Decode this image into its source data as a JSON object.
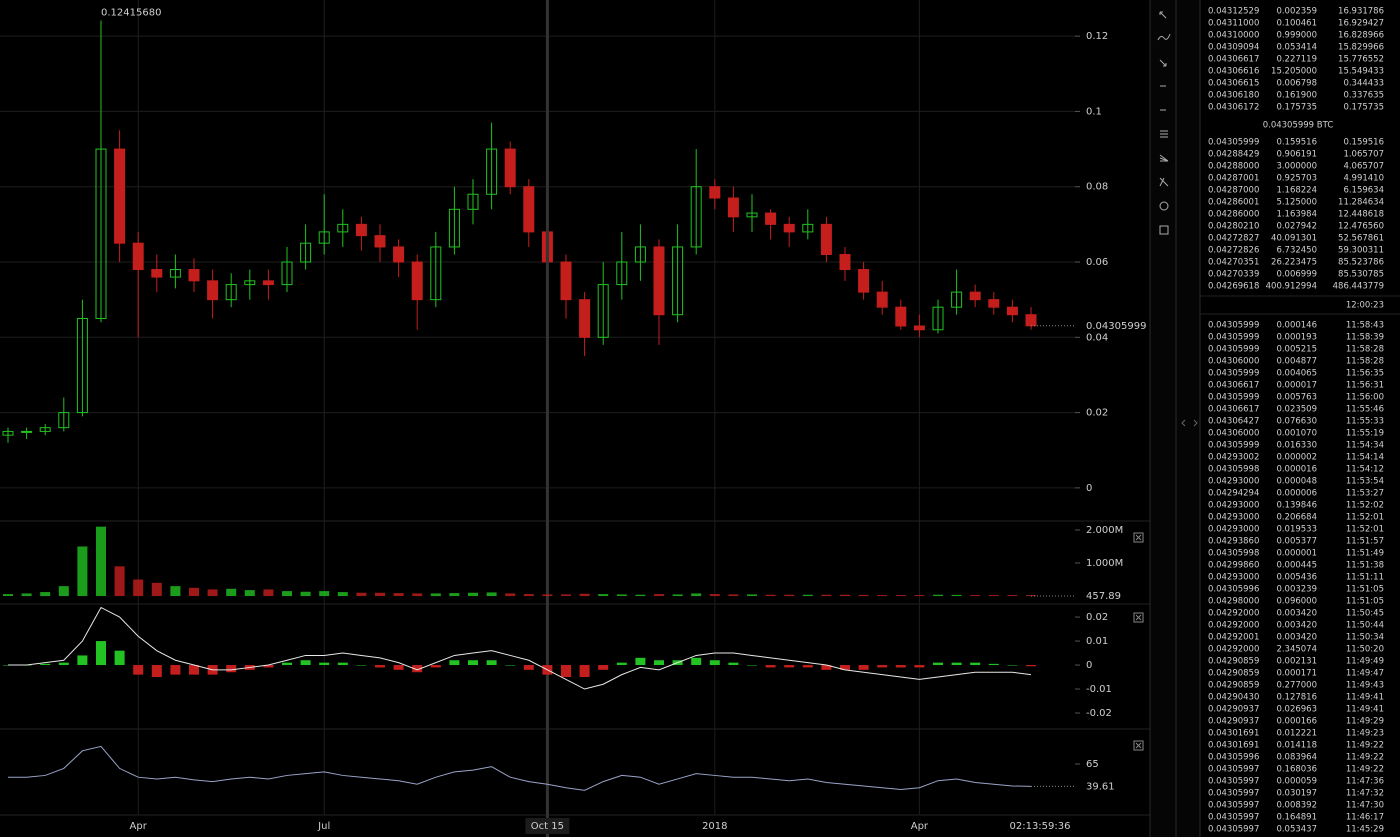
{
  "price_chart": {
    "type": "candlestick",
    "categories": [
      null,
      null,
      null,
      null,
      null,
      null,
      null,
      "Apr",
      null,
      null,
      null,
      null,
      null,
      null,
      null,
      null,
      null,
      "Jul",
      null,
      null,
      null,
      null,
      null,
      null,
      null,
      null,
      null,
      null,
      null,
      "Oct 15",
      null,
      null,
      null,
      null,
      null,
      null,
      null,
      null,
      "2018",
      null,
      null,
      null,
      null,
      null,
      null,
      null,
      null,
      null,
      null,
      "Apr",
      null,
      null,
      null,
      null,
      null,
      null
    ],
    "open": [
      0.014,
      0.015,
      0.015,
      0.016,
      0.02,
      0.045,
      0.09,
      0.065,
      0.058,
      0.056,
      0.058,
      0.055,
      0.05,
      0.054,
      0.055,
      0.054,
      0.06,
      0.065,
      0.068,
      0.07,
      0.067,
      0.064,
      0.06,
      0.05,
      0.064,
      0.074,
      0.078,
      0.09,
      0.08,
      0.068,
      0.06,
      0.05,
      0.04,
      0.054,
      0.06,
      0.064,
      0.046,
      0.064,
      0.08,
      0.077,
      0.072,
      0.073,
      0.07,
      0.068,
      0.07,
      0.062,
      0.058,
      0.052,
      0.048,
      0.043,
      0.042,
      0.048,
      0.052,
      0.05,
      0.048,
      0.046
    ],
    "high": [
      0.016,
      0.016,
      0.017,
      0.024,
      0.05,
      0.1241568,
      0.095,
      0.068,
      0.062,
      0.062,
      0.061,
      0.058,
      0.057,
      0.058,
      0.058,
      0.064,
      0.07,
      0.078,
      0.074,
      0.072,
      0.07,
      0.066,
      0.062,
      0.068,
      0.08,
      0.082,
      0.097,
      0.092,
      0.082,
      0.07,
      0.062,
      0.052,
      0.06,
      0.068,
      0.07,
      0.066,
      0.07,
      0.09,
      0.082,
      0.08,
      0.078,
      0.074,
      0.072,
      0.074,
      0.072,
      0.064,
      0.06,
      0.055,
      0.05,
      0.046,
      0.05,
      0.058,
      0.054,
      0.052,
      0.05,
      0.048
    ],
    "low": [
      0.012,
      0.013,
      0.014,
      0.015,
      0.019,
      0.044,
      0.06,
      0.04,
      0.052,
      0.053,
      0.052,
      0.045,
      0.048,
      0.05,
      0.05,
      0.052,
      0.058,
      0.062,
      0.064,
      0.063,
      0.06,
      0.056,
      0.042,
      0.048,
      0.062,
      0.07,
      0.074,
      0.078,
      0.064,
      0.056,
      0.045,
      0.035,
      0.038,
      0.05,
      0.055,
      0.038,
      0.044,
      0.062,
      0.074,
      0.068,
      0.068,
      0.066,
      0.064,
      0.066,
      0.06,
      0.055,
      0.05,
      0.046,
      0.042,
      0.04,
      0.041,
      0.046,
      0.048,
      0.046,
      0.044,
      0.042
    ],
    "close": [
      0.015,
      0.015,
      0.016,
      0.02,
      0.045,
      0.09,
      0.065,
      0.058,
      0.056,
      0.058,
      0.055,
      0.05,
      0.054,
      0.055,
      0.054,
      0.06,
      0.065,
      0.068,
      0.07,
      0.067,
      0.064,
      0.06,
      0.05,
      0.064,
      0.074,
      0.078,
      0.09,
      0.08,
      0.068,
      0.06,
      0.05,
      0.04,
      0.054,
      0.06,
      0.064,
      0.046,
      0.064,
      0.08,
      0.077,
      0.072,
      0.073,
      0.07,
      0.068,
      0.07,
      0.062,
      0.058,
      0.052,
      0.048,
      0.043,
      0.042,
      0.048,
      0.052,
      0.05,
      0.048,
      0.046,
      0.04305999
    ],
    "high_label": "0.12415680",
    "ylim": [
      -0.008,
      0.1296
    ],
    "yticks": [
      0,
      0.02,
      0.04,
      0.06,
      0.08,
      0.1,
      0.12
    ],
    "up_color": "#22c322",
    "down_color": "#c51f1d",
    "grid": true,
    "countdown": "02:13:59:36"
  },
  "volume_chart": {
    "type": "bar",
    "values": [
      60000,
      80000,
      120000,
      300000,
      1500000,
      2100000,
      900000,
      500000,
      400000,
      300000,
      250000,
      200000,
      220000,
      180000,
      200000,
      150000,
      130000,
      150000,
      120000,
      100000,
      100000,
      90000,
      80000,
      80000,
      90000,
      100000,
      110000,
      80000,
      60000,
      50000,
      50000,
      70000,
      60000,
      50000,
      40000,
      60000,
      50000,
      80000,
      60000,
      50000,
      50000,
      40000,
      40000,
      40000,
      40000,
      40000,
      35000,
      30000,
      30000,
      30000,
      40000,
      35000,
      30000,
      30000,
      25000,
      457.89
    ],
    "ylim": [
      -210000,
      2150000
    ],
    "yticks": [
      {
        "value": 1000000,
        "label": "1.000M"
      },
      {
        "value": 2000000,
        "label": "2.000M"
      }
    ]
  },
  "macd_chart": {
    "type": "histogram-line",
    "histogram": [
      0,
      0,
      0.0005,
      0.001,
      0.004,
      0.01,
      0.006,
      -0.004,
      -0.005,
      -0.004,
      -0.004,
      -0.004,
      -0.003,
      -0.002,
      -0.001,
      0.001,
      0.002,
      0.001,
      0.001,
      0,
      -0.001,
      -0.002,
      -0.003,
      -0.001,
      0.002,
      0.002,
      0.002,
      0,
      -0.002,
      -0.004,
      -0.005,
      -0.005,
      -0.002,
      0.001,
      0.003,
      0.002,
      0.002,
      0.003,
      0.002,
      0.001,
      0,
      -0.001,
      -0.001,
      -0.001,
      -0.002,
      -0.002,
      -0.002,
      -0.001,
      -0.001,
      -0.001,
      0.001,
      0.001,
      0.001,
      0.0005,
      0,
      -0.0005
    ],
    "macd": [
      0,
      0,
      0.001,
      0.002,
      0.01,
      0.024,
      0.02,
      0.012,
      0.006,
      0.002,
      0,
      -0.002,
      -0.002,
      -0.001,
      0,
      0.002,
      0.004,
      0.004,
      0.005,
      0.004,
      0.003,
      0.001,
      -0.002,
      0.001,
      0.004,
      0.005,
      0.006,
      0.004,
      0.002,
      -0.002,
      -0.006,
      -0.01,
      -0.008,
      -0.004,
      -0.001,
      -0.002,
      0.001,
      0.004,
      0.005,
      0.005,
      0.004,
      0.003,
      0.002,
      0.001,
      0,
      -0.002,
      -0.003,
      -0.004,
      -0.005,
      -0.006,
      -0.005,
      -0.004,
      -0.003,
      -0.003,
      -0.003,
      -0.004
    ],
    "ylim": [
      -0.025,
      0.0242
    ],
    "yticks": [
      -0.02,
      -0.01,
      0,
      0.01,
      0.02
    ]
  },
  "rsi_chart": {
    "type": "line",
    "values": [
      50,
      50,
      52,
      60,
      80,
      85,
      60,
      50,
      48,
      50,
      47,
      45,
      48,
      50,
      48,
      52,
      54,
      56,
      52,
      50,
      48,
      46,
      42,
      50,
      56,
      58,
      62,
      50,
      45,
      42,
      38,
      35,
      45,
      52,
      50,
      42,
      48,
      54,
      52,
      50,
      50,
      48,
      46,
      48,
      44,
      42,
      40,
      38,
      36,
      38,
      46,
      48,
      44,
      42,
      40,
      39.61
    ],
    "ylim": [
      7,
      98
    ],
    "yticks": [
      65
    ]
  },
  "order_book": {
    "ask_color": "#b2201e",
    "bid_color": "#22b822",
    "asks": [
      [
        "0.04312529",
        "0.002359",
        "16.931786"
      ],
      [
        "0.04311000",
        "0.100461",
        "16.929427"
      ],
      [
        "0.04310000",
        "0.999000",
        "16.828966"
      ],
      [
        "0.04309094",
        "0.053414",
        "15.829966"
      ],
      [
        "0.04306617",
        "0.227119",
        "15.776552"
      ],
      [
        "0.04306616",
        "15.205000",
        "15.549433"
      ],
      [
        "0.04306615",
        "0.006798",
        "0.344433"
      ],
      [
        "0.04306180",
        "0.161900",
        "0.337635"
      ],
      [
        "0.04306172",
        "0.175735",
        "0.175735"
      ]
    ],
    "mid": "0.04305999 BTC",
    "bids": [
      [
        "0.04305999",
        "0.159516",
        "0.159516"
      ],
      [
        "0.04288429",
        "0.906191",
        "1.065707"
      ],
      [
        "0.04288000",
        "3.000000",
        "4.065707"
      ],
      [
        "0.04287001",
        "0.925703",
        "4.991410"
      ],
      [
        "0.04287000",
        "1.168224",
        "6.159634"
      ],
      [
        "0.04286001",
        "5.125000",
        "11.284634"
      ],
      [
        "0.04286000",
        "1.163984",
        "12.448618"
      ],
      [
        "0.04280210",
        "0.027942",
        "12.476560"
      ],
      [
        "0.04272827",
        "40.091301",
        "52.567861"
      ],
      [
        "0.04272826",
        "6.732450",
        "59.300311"
      ],
      [
        "0.04270351",
        "26.223475",
        "85.523786"
      ],
      [
        "0.04270339",
        "0.006999",
        "85.530785"
      ],
      [
        "0.04269618",
        "400.912994",
        "486.443779"
      ]
    ],
    "time": "12:00:23"
  },
  "trades": {
    "rows": [
      [
        "0.04305999",
        "0.000146",
        "11:58:43"
      ],
      [
        "0.04305999",
        "0.000193",
        "11:58:39"
      ],
      [
        "0.04305999",
        "0.005215",
        "11:58:28"
      ],
      [
        "0.04306000",
        "0.004877",
        "11:58:28"
      ],
      [
        "0.04305999",
        "0.004065",
        "11:56:35"
      ],
      [
        "0.04306617",
        "0.000017",
        "11:56:31"
      ],
      [
        "0.04305999",
        "0.005763",
        "11:56:00"
      ],
      [
        "0.04306617",
        "0.023509",
        "11:55:46"
      ],
      [
        "0.04306427",
        "0.076630",
        "11:55:33"
      ],
      [
        "0.04306000",
        "0.001070",
        "11:55:19"
      ],
      [
        "0.04305999",
        "0.016330",
        "11:54:34"
      ],
      [
        "0.04293002",
        "0.000002",
        "11:54:14"
      ],
      [
        "0.04305998",
        "0.000016",
        "11:54:12"
      ],
      [
        "0.04293000",
        "0.000048",
        "11:53:54"
      ],
      [
        "0.04294294",
        "0.000006",
        "11:53:27"
      ],
      [
        "0.04293000",
        "0.139846",
        "11:52:02"
      ],
      [
        "0.04293000",
        "0.206684",
        "11:52:01"
      ],
      [
        "0.04293000",
        "0.019533",
        "11:52:01"
      ],
      [
        "0.04293860",
        "0.005377",
        "11:51:57"
      ],
      [
        "0.04305998",
        "0.000001",
        "11:51:49"
      ],
      [
        "0.04299860",
        "0.000445",
        "11:51:38"
      ],
      [
        "0.04293000",
        "0.005436",
        "11:51:11"
      ],
      [
        "0.04305996",
        "0.003239",
        "11:51:05"
      ],
      [
        "0.04298000",
        "0.096000",
        "11:51:05"
      ],
      [
        "0.04292000",
        "0.003420",
        "11:50:45"
      ],
      [
        "0.04292000",
        "0.003420",
        "11:50:44"
      ],
      [
        "0.04292001",
        "0.003420",
        "11:50:34"
      ],
      [
        "0.04292000",
        "2.345074",
        "11:50:20"
      ],
      [
        "0.04290859",
        "0.002131",
        "11:49:49"
      ],
      [
        "0.04290859",
        "0.000171",
        "11:49:47"
      ],
      [
        "0.04290859",
        "0.277000",
        "11:49:43"
      ],
      [
        "0.04290430",
        "0.127816",
        "11:49:41"
      ],
      [
        "0.04290937",
        "0.026963",
        "11:49:41"
      ],
      [
        "0.04290937",
        "0.000166",
        "11:49:29"
      ],
      [
        "0.04301691",
        "0.012221",
        "11:49:23"
      ],
      [
        "0.04301691",
        "0.014118",
        "11:49:22"
      ],
      [
        "0.04305996",
        "0.083964",
        "11:49:22"
      ],
      [
        "0.04305997",
        "0.168036",
        "11:49:22"
      ],
      [
        "0.04305997",
        "0.000059",
        "11:47:36"
      ],
      [
        "0.04305997",
        "0.030197",
        "11:47:32"
      ],
      [
        "0.04305997",
        "0.008392",
        "11:47:30"
      ],
      [
        "0.04305997",
        "0.164891",
        "11:46:17"
      ],
      [
        "0.04305997",
        "0.053437",
        "11:45:29"
      ]
    ],
    "colors": [
      "#b2201e",
      "#b2201e",
      "#b2201e",
      "#22b822",
      "#b2201e",
      "#22b822",
      "#b2201e",
      "#22b822",
      "#22b822",
      "#22b822",
      "#22b822",
      "#b2201e",
      "#22b822",
      "#b2201e",
      "#22b822",
      "#b2201e",
      "#b2201e",
      "#b2201e",
      "#b2201e",
      "#22b822",
      "#22b822",
      "#b2201e",
      "#22b822",
      "#22b822",
      "#b2201e",
      "#b2201e",
      "#22b822",
      "#22b822",
      "#22b822",
      "#22b822",
      "#22b822",
      "#b2201e",
      "#b2201e",
      "#b2201e",
      "#b2201e",
      "#b2201e",
      "#b2201e",
      "#22b822",
      "#22b822",
      "#22b822",
      "#22b822",
      "#22b822",
      "#22b822"
    ]
  }
}
